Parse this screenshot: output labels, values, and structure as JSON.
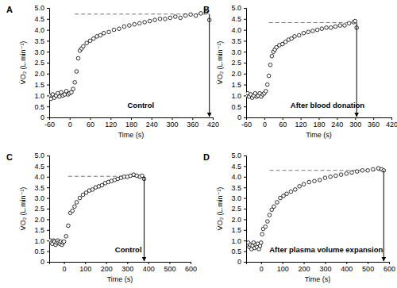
{
  "chart_data": [
    {
      "type": "scatter",
      "title": "A",
      "annotation": "Control",
      "x_label": "Time (s)",
      "y_label": "V̇O₂ (L.min⁻¹)",
      "xlim": [
        -60,
        420
      ],
      "xticks": [
        -60,
        0,
        60,
        120,
        180,
        240,
        300,
        360,
        420
      ],
      "ylim": [
        0,
        5
      ],
      "yticks": [
        0,
        0.5,
        {
          "value": 1,
          "label": "1.0"
        },
        1.5,
        {
          "value": 2,
          "label": "2.0"
        },
        2.5,
        {
          "value": 3,
          "label": "3.0"
        },
        3.5,
        {
          "value": 4,
          "label": "4.0"
        },
        4.5,
        {
          "value": 5,
          "label": "5.0"
        }
      ],
      "reference_line": {
        "y": 4.72,
        "x": [
          15,
          410
        ]
      },
      "arrow": {
        "x": 410,
        "y": 4.72
      },
      "series": [
        {
          "color": "#000000",
          "marker": "circle",
          "x": [
            -60,
            -55,
            -50,
            -45,
            -40,
            -35,
            -30,
            -25,
            -20,
            -15,
            -10,
            -5,
            0,
            5,
            10,
            15,
            20,
            25,
            30,
            35,
            40,
            50,
            60,
            70,
            80,
            90,
            100,
            115,
            130,
            145,
            160,
            175,
            190,
            205,
            220,
            235,
            250,
            265,
            280,
            295,
            310,
            325,
            340,
            355,
            370,
            385,
            400,
            410
          ],
          "values": [
            1.0,
            0.85,
            1.05,
            0.9,
            1.0,
            1.1,
            0.95,
            1.15,
            1.0,
            1.05,
            1.2,
            1.05,
            1.1,
            1.15,
            1.3,
            1.6,
            2.1,
            2.7,
            3.05,
            3.15,
            3.25,
            3.4,
            3.5,
            3.6,
            3.7,
            3.75,
            3.85,
            3.9,
            4.0,
            4.05,
            4.15,
            4.2,
            4.25,
            4.3,
            4.35,
            4.4,
            4.45,
            4.5,
            4.5,
            4.55,
            4.6,
            4.55,
            4.65,
            4.7,
            4.65,
            4.75,
            4.8,
            4.45
          ]
        }
      ]
    },
    {
      "type": "scatter",
      "title": "B",
      "annotation": "After blood donation",
      "x_label": "Time (s)",
      "y_label": "V̇O₂ (L.min⁻¹)",
      "xlim": [
        -60,
        420
      ],
      "xticks": [
        -60,
        0,
        60,
        120,
        180,
        240,
        300,
        360,
        420
      ],
      "ylim": [
        0,
        5
      ],
      "yticks": [
        0,
        0.5,
        {
          "value": 1,
          "label": "1.0"
        },
        1.5,
        {
          "value": 2,
          "label": "2.0"
        },
        2.5,
        {
          "value": 3,
          "label": "3.0"
        },
        3.5,
        {
          "value": 4,
          "label": "4.0"
        },
        4.5,
        {
          "value": 5,
          "label": "5.0"
        }
      ],
      "reference_line": {
        "y": 4.33,
        "x": [
          15,
          305
        ]
      },
      "arrow": {
        "x": 305,
        "y": 4.33
      },
      "series": [
        {
          "color": "#000000",
          "marker": "circle",
          "x": [
            -60,
            -55,
            -50,
            -45,
            -40,
            -35,
            -30,
            -25,
            -20,
            -15,
            -10,
            -5,
            0,
            5,
            10,
            15,
            20,
            25,
            30,
            35,
            40,
            50,
            60,
            70,
            80,
            90,
            100,
            115,
            130,
            145,
            160,
            175,
            190,
            205,
            220,
            235,
            250,
            265,
            280,
            295,
            300,
            305
          ],
          "values": [
            1.0,
            1.1,
            0.95,
            1.05,
            0.9,
            1.0,
            1.1,
            0.95,
            1.0,
            1.1,
            0.95,
            1.05,
            1.1,
            1.2,
            1.5,
            1.9,
            2.4,
            2.8,
            3.0,
            3.1,
            3.2,
            3.3,
            3.35,
            3.45,
            3.55,
            3.6,
            3.7,
            3.75,
            3.85,
            3.9,
            3.95,
            4.0,
            4.05,
            4.1,
            4.1,
            4.15,
            4.2,
            4.2,
            4.3,
            4.35,
            4.4,
            4.1
          ]
        }
      ]
    },
    {
      "type": "scatter",
      "title": "C",
      "annotation": "Control",
      "x_label": "Time (s)",
      "y_label": "V̇O₂ (L.min⁻¹)",
      "xlim": [
        -70,
        600
      ],
      "xticks": [
        0,
        100,
        200,
        300,
        400,
        500,
        600
      ],
      "ylim": [
        0,
        5
      ],
      "yticks": [
        0,
        0.5,
        {
          "value": 1,
          "label": "1.0"
        },
        1.5,
        {
          "value": 2,
          "label": "2.0"
        },
        2.5,
        {
          "value": 3,
          "label": "3.0"
        },
        3.5,
        {
          "value": 4,
          "label": "4.0"
        },
        4.5,
        {
          "value": 5,
          "label": "5.0"
        }
      ],
      "reference_line": {
        "y": 4.02,
        "x": [
          20,
          380
        ]
      },
      "arrow": {
        "x": 380,
        "y": 4.02
      },
      "series": [
        {
          "color": "#000000",
          "marker": "circle",
          "x": [
            -65,
            -60,
            -55,
            -50,
            -45,
            -40,
            -35,
            -30,
            -25,
            -20,
            -15,
            -10,
            -5,
            0,
            10,
            20,
            30,
            40,
            50,
            60,
            75,
            90,
            105,
            120,
            135,
            150,
            165,
            180,
            195,
            210,
            225,
            240,
            255,
            270,
            285,
            300,
            315,
            330,
            345,
            360,
            370,
            380
          ],
          "values": [
            1.0,
            0.9,
            0.85,
            1.0,
            0.95,
            0.8,
            0.9,
            1.0,
            0.9,
            0.85,
            0.95,
            0.8,
            0.9,
            0.95,
            1.2,
            1.7,
            2.3,
            2.4,
            2.6,
            2.8,
            3.0,
            3.15,
            3.25,
            3.35,
            3.4,
            3.5,
            3.55,
            3.6,
            3.7,
            3.75,
            3.8,
            3.85,
            3.9,
            3.95,
            4.0,
            4.0,
            4.05,
            4.1,
            4.05,
            4.0,
            4.05,
            3.9
          ]
        }
      ]
    },
    {
      "type": "scatter",
      "title": "D",
      "annotation": "After plasma volume expansion",
      "x_label": "Time (s)",
      "y_label": "V̇O₂ (L.min⁻¹)",
      "xlim": [
        -70,
        600
      ],
      "xticks": [
        0,
        100,
        200,
        300,
        400,
        500,
        600
      ],
      "ylim": [
        0,
        5
      ],
      "yticks": [
        0,
        0.5,
        {
          "value": 1,
          "label": "1.0"
        },
        1.5,
        {
          "value": 2,
          "label": "2.0"
        },
        2.5,
        {
          "value": 3,
          "label": "3.0"
        },
        3.5,
        {
          "value": 4,
          "label": "4.0"
        },
        4.5,
        {
          "value": 5,
          "label": "5.0"
        }
      ],
      "reference_line": {
        "y": 4.3,
        "x": [
          40,
          575
        ]
      },
      "arrow": {
        "x": 575,
        "y": 4.3
      },
      "series": [
        {
          "color": "#000000",
          "marker": "circle",
          "x": [
            -60,
            -55,
            -50,
            -45,
            -40,
            -35,
            -30,
            -25,
            -20,
            -15,
            -10,
            -5,
            0,
            5,
            10,
            20,
            30,
            40,
            50,
            60,
            75,
            90,
            105,
            120,
            140,
            160,
            180,
            200,
            225,
            250,
            275,
            300,
            325,
            350,
            375,
            400,
            425,
            450,
            475,
            500,
            525,
            550,
            565,
            575
          ],
          "values": [
            0.9,
            0.7,
            0.8,
            0.6,
            0.75,
            0.9,
            0.65,
            0.8,
            0.7,
            0.85,
            0.6,
            0.75,
            0.9,
            1.3,
            1.55,
            1.65,
            1.9,
            2.2,
            2.45,
            2.6,
            2.8,
            3.0,
            3.1,
            3.2,
            3.3,
            3.4,
            3.55,
            3.65,
            3.75,
            3.8,
            3.85,
            3.95,
            4.0,
            4.05,
            4.1,
            4.15,
            4.2,
            4.25,
            4.3,
            4.3,
            4.35,
            4.4,
            4.35,
            4.3
          ]
        }
      ]
    }
  ]
}
